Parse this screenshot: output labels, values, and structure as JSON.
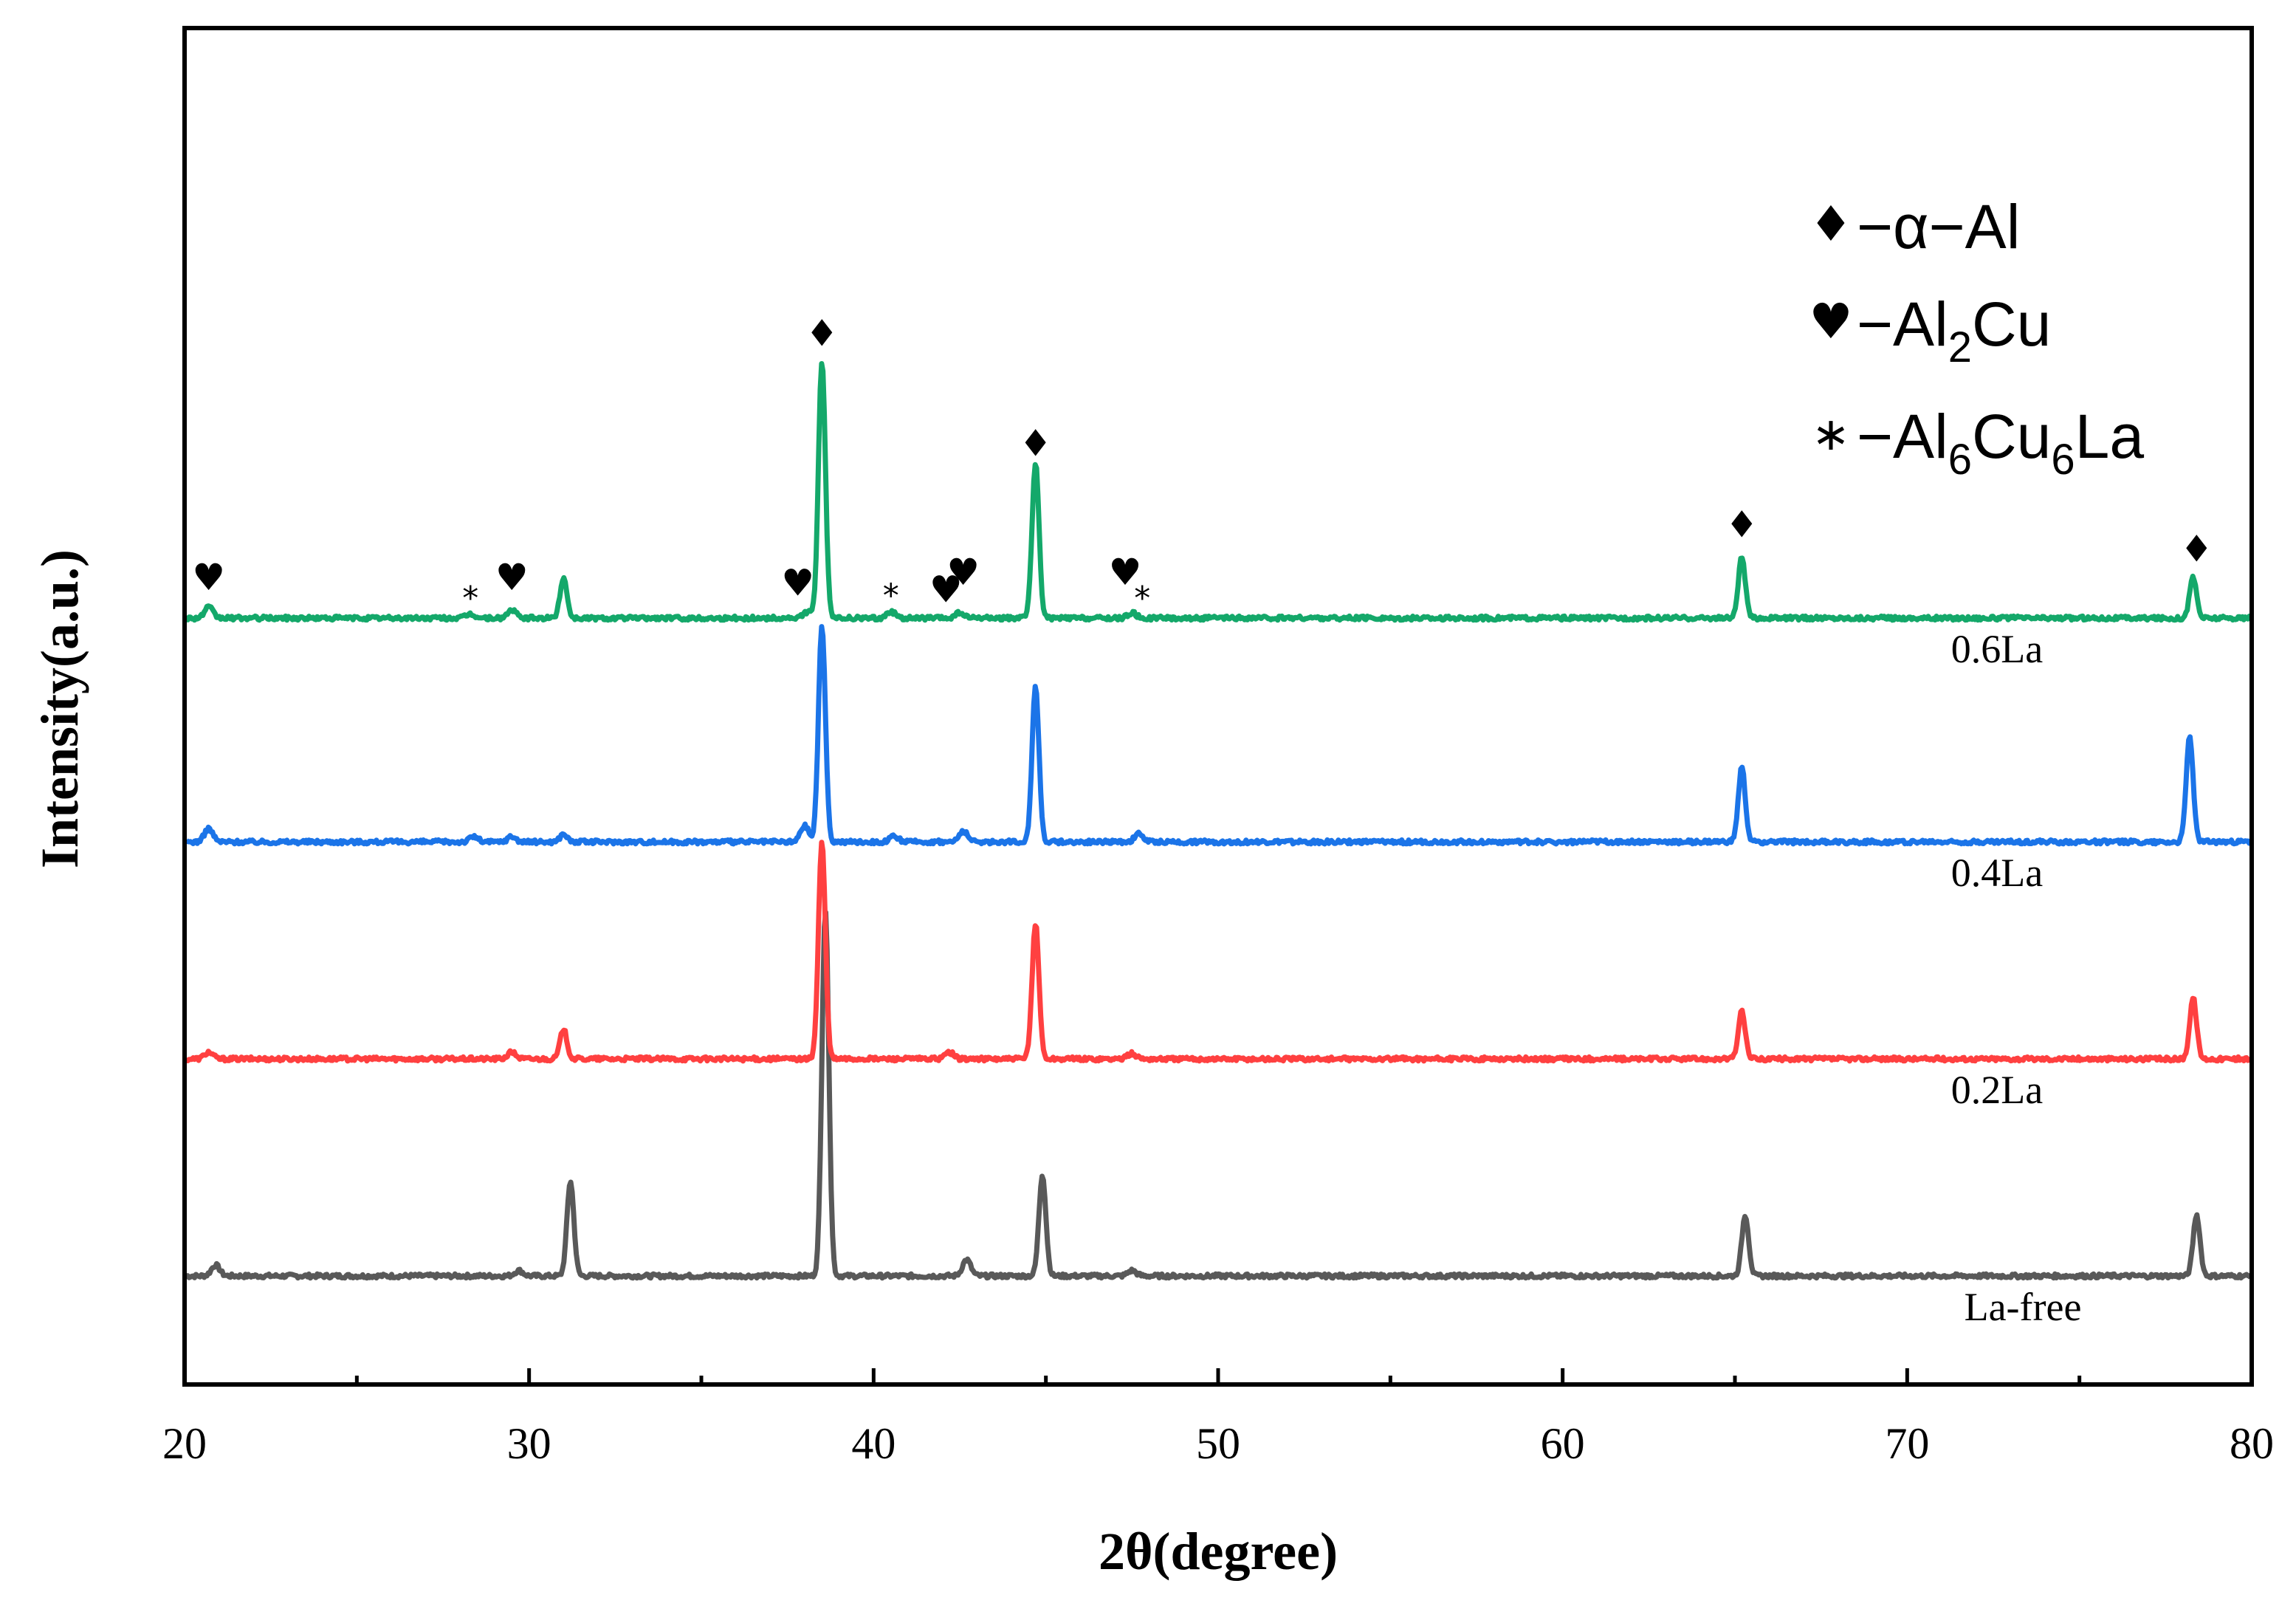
{
  "chart_data": {
    "type": "line",
    "xlabel": "2θ(degree)",
    "ylabel": "Intensity(a.u.)",
    "xlim": [
      20,
      80
    ],
    "ylim": [
      0,
      1
    ],
    "grid": false,
    "x_ticks": [
      20,
      30,
      40,
      50,
      60,
      70,
      80
    ],
    "x_minor_ticks": [
      25,
      35,
      45,
      55,
      65,
      75
    ],
    "x_tick_labels": [
      "20",
      "30",
      "40",
      "50",
      "60",
      "70",
      "80"
    ],
    "series": [
      {
        "name": "La-free",
        "color": "#595959",
        "baseline": 0.08,
        "peaks": [
          {
            "x": 20.9,
            "h": 0.008,
            "w": 0.12
          },
          {
            "x": 29.7,
            "h": 0.004,
            "w": 0.12
          },
          {
            "x": 31.2,
            "h": 0.07,
            "w": 0.1
          },
          {
            "x": 38.6,
            "h": 0.27,
            "w": 0.1
          },
          {
            "x": 42.7,
            "h": 0.012,
            "w": 0.12
          },
          {
            "x": 44.9,
            "h": 0.075,
            "w": 0.1
          },
          {
            "x": 47.5,
            "h": 0.004,
            "w": 0.12
          },
          {
            "x": 65.3,
            "h": 0.045,
            "w": 0.1
          },
          {
            "x": 78.4,
            "h": 0.045,
            "w": 0.1
          }
        ]
      },
      {
        "name": "0.2La",
        "color": "#ff4040",
        "baseline": 0.24,
        "peaks": [
          {
            "x": 20.7,
            "h": 0.005,
            "w": 0.12
          },
          {
            "x": 29.5,
            "h": 0.005,
            "w": 0.12
          },
          {
            "x": 31.0,
            "h": 0.022,
            "w": 0.1
          },
          {
            "x": 38.5,
            "h": 0.16,
            "w": 0.1
          },
          {
            "x": 42.2,
            "h": 0.005,
            "w": 0.12
          },
          {
            "x": 44.7,
            "h": 0.1,
            "w": 0.1
          },
          {
            "x": 47.5,
            "h": 0.004,
            "w": 0.12
          },
          {
            "x": 65.2,
            "h": 0.035,
            "w": 0.1
          },
          {
            "x": 78.3,
            "h": 0.045,
            "w": 0.1
          }
        ]
      },
      {
        "name": "0.4La",
        "color": "#1b74e8",
        "baseline": 0.4,
        "peaks": [
          {
            "x": 20.7,
            "h": 0.01,
            "w": 0.12
          },
          {
            "x": 28.4,
            "h": 0.004,
            "w": 0.12
          },
          {
            "x": 29.5,
            "h": 0.004,
            "w": 0.12
          },
          {
            "x": 31.0,
            "h": 0.006,
            "w": 0.1
          },
          {
            "x": 38.0,
            "h": 0.012,
            "w": 0.12
          },
          {
            "x": 38.5,
            "h": 0.16,
            "w": 0.1
          },
          {
            "x": 40.6,
            "h": 0.004,
            "w": 0.12
          },
          {
            "x": 42.6,
            "h": 0.008,
            "w": 0.12
          },
          {
            "x": 44.7,
            "h": 0.115,
            "w": 0.1
          },
          {
            "x": 47.7,
            "h": 0.006,
            "w": 0.12
          },
          {
            "x": 65.2,
            "h": 0.055,
            "w": 0.1
          },
          {
            "x": 78.2,
            "h": 0.078,
            "w": 0.1
          }
        ]
      },
      {
        "name": "0.6La",
        "color": "#14a86a",
        "baseline": 0.565,
        "peaks": [
          {
            "x": 20.7,
            "h": 0.008,
            "w": 0.12
          },
          {
            "x": 28.3,
            "h": 0.003,
            "w": 0.12
          },
          {
            "x": 29.5,
            "h": 0.006,
            "w": 0.12
          },
          {
            "x": 31.0,
            "h": 0.03,
            "w": 0.1
          },
          {
            "x": 38.1,
            "h": 0.005,
            "w": 0.12
          },
          {
            "x": 38.5,
            "h": 0.19,
            "w": 0.1
          },
          {
            "x": 40.5,
            "h": 0.005,
            "w": 0.12
          },
          {
            "x": 42.5,
            "h": 0.004,
            "w": 0.12
          },
          {
            "x": 44.7,
            "h": 0.115,
            "w": 0.1
          },
          {
            "x": 47.5,
            "h": 0.004,
            "w": 0.12
          },
          {
            "x": 65.2,
            "h": 0.045,
            "w": 0.1
          },
          {
            "x": 78.3,
            "h": 0.03,
            "w": 0.1
          }
        ]
      }
    ],
    "phase_markers": [
      {
        "symbol": "♥",
        "x": 20.7,
        "y": 0.593
      },
      {
        "symbol": "*",
        "x": 28.3,
        "y": 0.578
      },
      {
        "symbol": "♥",
        "x": 29.5,
        "y": 0.593
      },
      {
        "symbol": "♥",
        "x": 37.8,
        "y": 0.589
      },
      {
        "symbol": "♦",
        "x": 38.5,
        "y": 0.773
      },
      {
        "symbol": "*",
        "x": 40.5,
        "y": 0.58
      },
      {
        "symbol": "♥",
        "x": 42.1,
        "y": 0.584
      },
      {
        "symbol": "♥",
        "x": 42.6,
        "y": 0.597
      },
      {
        "symbol": "♦",
        "x": 44.7,
        "y": 0.692
      },
      {
        "symbol": "♥",
        "x": 47.3,
        "y": 0.597
      },
      {
        "symbol": "*",
        "x": 47.8,
        "y": 0.578
      },
      {
        "symbol": "♦",
        "x": 65.2,
        "y": 0.632
      },
      {
        "symbol": "♦",
        "x": 78.4,
        "y": 0.614
      }
    ],
    "legend": {
      "position": "top-right",
      "entries": [
        {
          "symbol": "♦",
          "label": "−α−Al"
        },
        {
          "symbol": "♥",
          "label": "−Al",
          "sub": "2",
          "tail": "Cu"
        },
        {
          "symbol": "∗",
          "label": "−Al",
          "sub": "6",
          "tail": "Cu",
          "sub2": "6",
          "tail2": "La"
        }
      ]
    }
  }
}
